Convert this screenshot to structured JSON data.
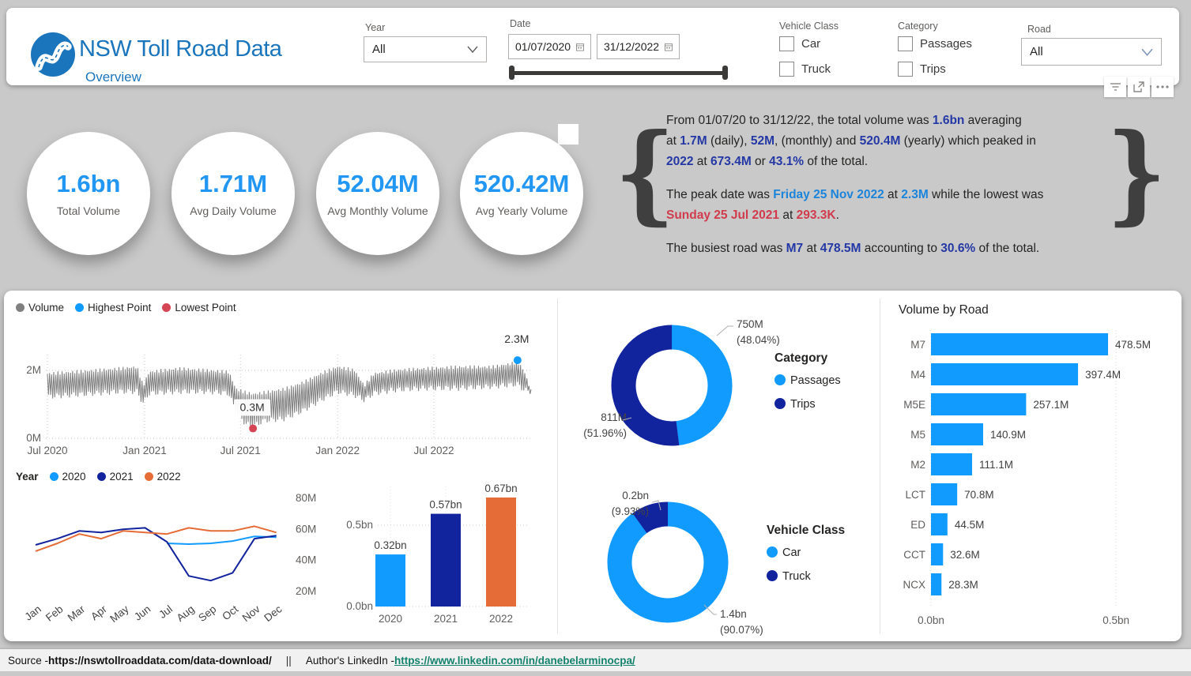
{
  "header": {
    "title": "NSW Toll Road Data",
    "subtitle": "Overview",
    "filters": {
      "year": {
        "label": "Year",
        "value": "All"
      },
      "date": {
        "label": "Date",
        "from": "01/07/2020",
        "to": "31/12/2022"
      },
      "vehicle_class": {
        "label": "Vehicle Class",
        "options": [
          {
            "label": "Car",
            "checked": false
          },
          {
            "label": "Truck",
            "checked": false
          }
        ]
      },
      "category": {
        "label": "Category",
        "options": [
          {
            "label": "Passages",
            "checked": false
          },
          {
            "label": "Trips",
            "checked": false
          }
        ]
      },
      "road": {
        "label": "Road",
        "value": "All"
      }
    }
  },
  "icons": {
    "toolbar": [
      "filters-icon",
      "popout-icon",
      "more-options-icon"
    ],
    "date_field": "calendar-icon",
    "dropdown": "chevron-down-icon",
    "logo": "road-logo-icon"
  },
  "kpis": [
    {
      "value": "1.6bn",
      "label": "Total Volume"
    },
    {
      "value": "1.71M",
      "label": "Avg Daily Volume"
    },
    {
      "value": "52.04M",
      "label": "Avg Monthly Volume"
    },
    {
      "value": "520.42M",
      "label": "Avg Yearly Volume"
    }
  ],
  "summary": {
    "brace_left": "{",
    "brace_right": "}",
    "paragraphs": [
      [
        [
          {
            "t": "From 01/07/20 to 31/12/22, the total volume was "
          },
          {
            "t": "1.6bn",
            "c": "navy"
          },
          {
            "t": " averaging"
          }
        ],
        [
          {
            "t": "at "
          },
          {
            "t": "1.7M",
            "c": "navy"
          },
          {
            "t": " (daily), "
          },
          {
            "t": "52M",
            "c": "navy"
          },
          {
            "t": ", (monthly) and "
          },
          {
            "t": "520.4M",
            "c": "navy"
          },
          {
            "t": " (yearly) which peaked in"
          }
        ],
        [
          {
            "t": "2022",
            "c": "navy"
          },
          {
            "t": " at "
          },
          {
            "t": "673.4M",
            "c": "navy"
          },
          {
            "t": " or "
          },
          {
            "t": "43.1%",
            "c": "navy"
          },
          {
            "t": " of the total."
          }
        ]
      ],
      [
        [
          {
            "t": "The peak date was "
          },
          {
            "t": "Friday 25 Nov 2022",
            "c": "blue"
          },
          {
            "t": " at "
          },
          {
            "t": "2.3M",
            "c": "blue"
          },
          {
            "t": " while the lowest was"
          }
        ],
        [
          {
            "t": "Sunday 25 Jul 2021",
            "c": "red"
          },
          {
            "t": " at "
          },
          {
            "t": "293.3K",
            "c": "red"
          },
          {
            "t": "."
          }
        ]
      ],
      [
        [
          {
            "t": "The busiest road was "
          },
          {
            "t": "M7",
            "c": "navy"
          },
          {
            "t": " at "
          },
          {
            "t": "478.5M",
            "c": "navy"
          },
          {
            "t": " accounting to "
          },
          {
            "t": "30.6%",
            "c": "navy"
          },
          {
            "t": " of the total."
          }
        ]
      ]
    ]
  },
  "chart_data": [
    {
      "id": "daily_volume",
      "type": "line",
      "legend": [
        {
          "name": "Volume",
          "color": "#808080"
        },
        {
          "name": "Highest Point",
          "color": "#119bff"
        },
        {
          "name": "Lowest Point",
          "color": "#d64554"
        }
      ],
      "x_ticks": [
        {
          "label": "Jul 2020",
          "t": 0.0
        },
        {
          "label": "Jan 2021",
          "t": 0.201
        },
        {
          "label": "Jul 2021",
          "t": 0.399
        },
        {
          "label": "Jan 2022",
          "t": 0.6
        },
        {
          "label": "Jul 2022",
          "t": 0.799
        }
      ],
      "y_ticks": [
        {
          "label": "0M",
          "v": 0
        },
        {
          "label": "2M",
          "v": 2
        }
      ],
      "ylim_m": [
        0,
        2.6
      ],
      "line_color": "#7f7f7f",
      "annotations": [
        {
          "label": "2.3M",
          "t": 0.972,
          "v": 2.3,
          "color": "#119bff",
          "kind": "highest"
        },
        {
          "label": "0.3M",
          "t": 0.425,
          "v": 0.29,
          "color": "#d64554",
          "kind": "lowest"
        }
      ],
      "envelope_t_high_low_m": [
        [
          0.0,
          1.95,
          1.15
        ],
        [
          0.05,
          2.0,
          1.2
        ],
        [
          0.1,
          2.05,
          1.25
        ],
        [
          0.15,
          2.1,
          1.3
        ],
        [
          0.185,
          2.15,
          1.3
        ],
        [
          0.198,
          1.6,
          0.95
        ],
        [
          0.21,
          2.0,
          1.25
        ],
        [
          0.27,
          2.1,
          1.3
        ],
        [
          0.33,
          2.05,
          1.3
        ],
        [
          0.375,
          2.0,
          1.25
        ],
        [
          0.39,
          1.5,
          0.7
        ],
        [
          0.41,
          1.4,
          0.35
        ],
        [
          0.425,
          1.35,
          0.29
        ],
        [
          0.45,
          1.4,
          0.45
        ],
        [
          0.49,
          1.5,
          0.5
        ],
        [
          0.53,
          1.7,
          0.75
        ],
        [
          0.565,
          1.95,
          1.05
        ],
        [
          0.6,
          2.15,
          1.3
        ],
        [
          0.635,
          2.05,
          1.2
        ],
        [
          0.655,
          1.6,
          1.05
        ],
        [
          0.675,
          1.95,
          1.25
        ],
        [
          0.72,
          2.05,
          1.35
        ],
        [
          0.78,
          2.1,
          1.4
        ],
        [
          0.85,
          2.15,
          1.4
        ],
        [
          0.92,
          2.15,
          1.45
        ],
        [
          0.96,
          2.25,
          1.5
        ],
        [
          0.972,
          2.3,
          1.52
        ],
        [
          0.985,
          2.05,
          1.35
        ],
        [
          1.0,
          1.45,
          1.3
        ]
      ]
    },
    {
      "id": "volume_by_month_and_year",
      "type": "line",
      "legend_title": "Year",
      "categories": [
        "Jan",
        "Feb",
        "Mar",
        "Apr",
        "May",
        "Jun",
        "Jul",
        "Aug",
        "Sep",
        "Oct",
        "Nov",
        "Dec"
      ],
      "series": [
        {
          "name": "2020",
          "color": "#119bff",
          "values_m": [
            null,
            null,
            null,
            null,
            null,
            null,
            51,
            50.5,
            51,
            52.5,
            55.5,
            55
          ]
        },
        {
          "name": "2021",
          "color": "#12239e",
          "values_m": [
            50,
            54,
            59,
            58,
            60,
            61,
            52,
            30,
            27,
            32,
            54,
            56
          ]
        },
        {
          "name": "2022",
          "color": "#e66c37",
          "values_m": [
            46,
            51,
            57,
            54,
            59,
            58,
            57,
            61,
            59,
            59,
            62,
            58
          ]
        }
      ],
      "y_ticks": [
        {
          "label": "20M",
          "v": 20
        },
        {
          "label": "40M",
          "v": 40
        },
        {
          "label": "60M",
          "v": 60
        },
        {
          "label": "80M",
          "v": 80
        }
      ]
    },
    {
      "id": "volume_by_year",
      "type": "bar",
      "categories": [
        "2020",
        "2021",
        "2022"
      ],
      "values_bn": [
        0.32,
        0.57,
        0.67
      ],
      "labels": [
        "0.32bn",
        "0.57bn",
        "0.67bn"
      ],
      "colors": [
        "#119bff",
        "#12239e",
        "#e66c37"
      ],
      "y_ticks": [
        {
          "label": "0.0bn",
          "v": 0
        },
        {
          "label": "0.5bn",
          "v": 0.5
        }
      ]
    },
    {
      "id": "category_donut",
      "type": "donut",
      "legend_title": "Category",
      "slices": [
        {
          "name": "Passages",
          "value_label": "750M",
          "pct_label": "(48.04%)",
          "pct": 48.04,
          "color": "#119bff"
        },
        {
          "name": "Trips",
          "value_label": "811M",
          "pct_label": "(51.96%)",
          "pct": 51.96,
          "color": "#12239e"
        }
      ]
    },
    {
      "id": "vehicle_class_donut",
      "type": "donut",
      "legend_title": "Vehicle Class",
      "slices": [
        {
          "name": "Car",
          "value_label": "1.4bn",
          "pct_label": "(90.07%)",
          "pct": 90.07,
          "color": "#119bff"
        },
        {
          "name": "Truck",
          "value_label": "0.2bn",
          "pct_label": "(9.93%)",
          "pct": 9.93,
          "color": "#12239e"
        }
      ]
    },
    {
      "id": "volume_by_road",
      "type": "bar",
      "title": "Volume by Road",
      "categories": [
        "M7",
        "M4",
        "M5E",
        "M5",
        "M2",
        "LCT",
        "ED",
        "CCT",
        "NCX"
      ],
      "values_m": [
        478.5,
        397.4,
        257.1,
        140.9,
        111.1,
        70.8,
        44.5,
        32.6,
        28.3
      ],
      "labels": [
        "478.5M",
        "397.4M",
        "257.1M",
        "140.9M",
        "111.1M",
        "70.8M",
        "44.5M",
        "32.6M",
        "28.3M"
      ],
      "bar_color": "#119bff",
      "x_ticks": [
        {
          "label": "0.0bn",
          "v": 0
        },
        {
          "label": "0.5bn",
          "v": 500
        }
      ]
    }
  ],
  "footer": {
    "source_label": "Source - ",
    "source_url": "https://nswtollroaddata.com/data-download/",
    "separator": "||",
    "author_label": "Author's LinkedIn - ",
    "author_url": "https://www.linkedin.com/in/danebelarminocpa/"
  },
  "colors": {
    "light_blue": "#119bff",
    "navy": "#12239e",
    "orange": "#e66c37",
    "gray_line": "#7f7f7f",
    "red": "#d64554",
    "title_blue": "#1b75bc",
    "kpi_blue": "#2196f3",
    "link_teal": "#12826c",
    "background": "#c9c9c9"
  }
}
